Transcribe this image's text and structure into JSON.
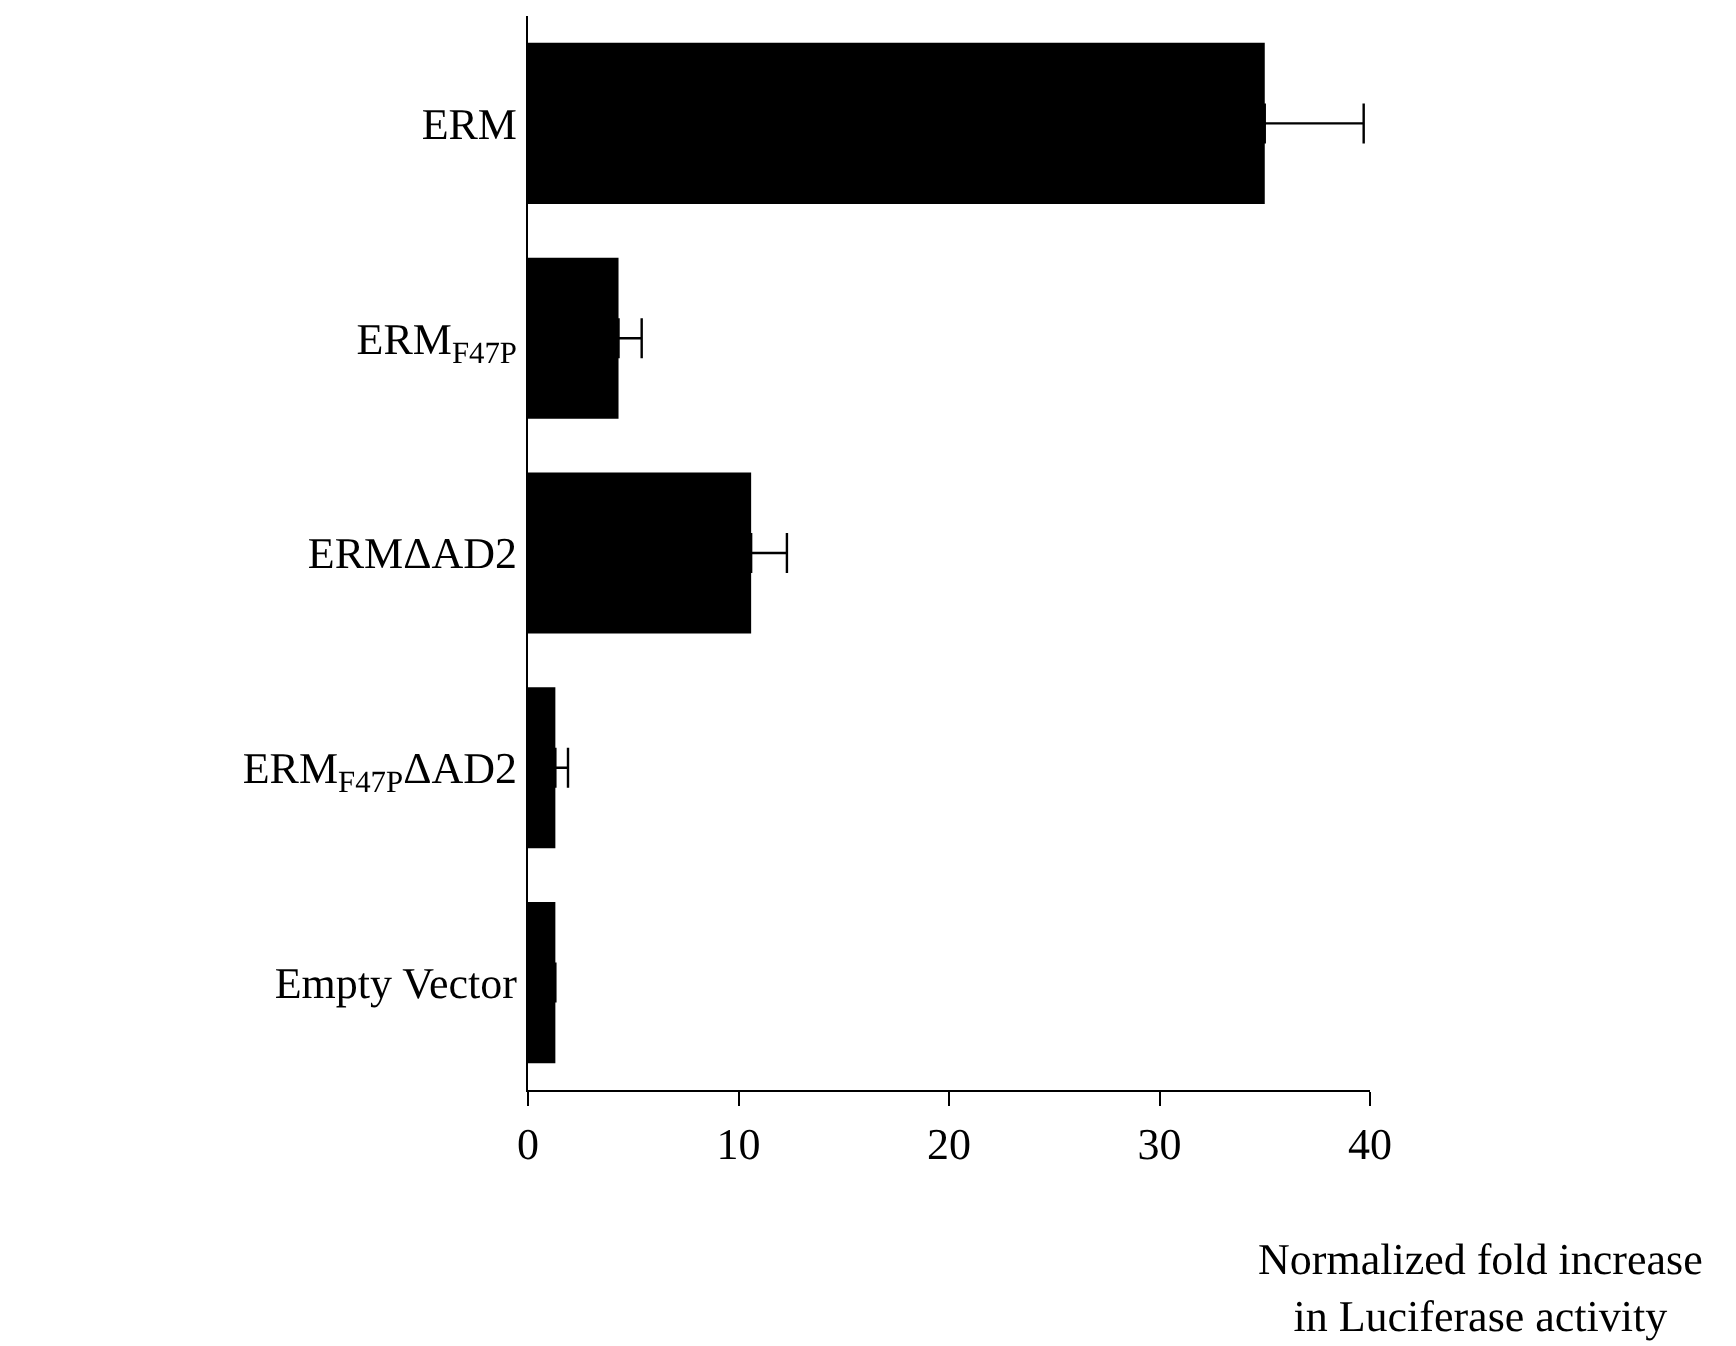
{
  "chart_data": {
    "type": "bar",
    "orientation": "horizontal",
    "categories": [
      "ERM",
      "ERM$_{F47P}$",
      "ERMΔAD2",
      "ERM$_{F47P}$ΔAD2",
      "Empty Vector"
    ],
    "values": [
      35,
      4.3,
      10.6,
      1.3,
      1.3
    ],
    "errors": [
      [
        35,
        39.7
      ],
      [
        4.3,
        5.4
      ],
      [
        10.6,
        12.3
      ],
      [
        1.3,
        1.9
      ],
      null
    ],
    "color": "#000000",
    "xlim": [
      0,
      40
    ],
    "xticks": [
      0,
      10,
      20,
      30,
      40
    ],
    "grid": false,
    "xlabel": "Normalized fold increase\nin Luciferase activity"
  }
}
